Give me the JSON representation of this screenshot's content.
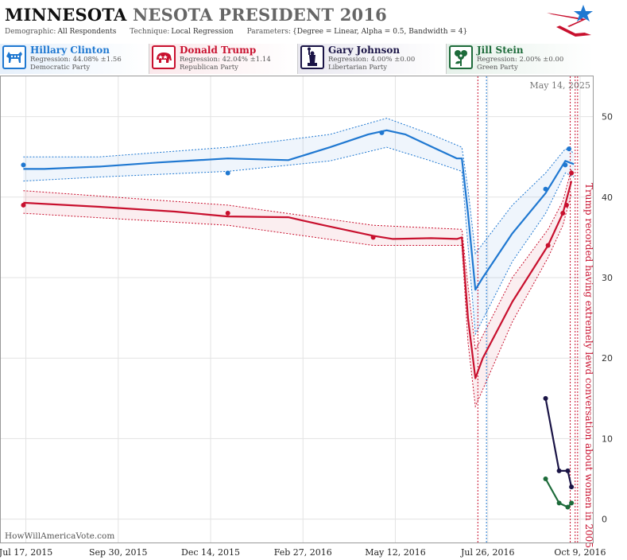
{
  "header": {
    "title_state": "MINNESOTA",
    "title_rest": "NESOTA PRESIDENT 2016",
    "demographic_label": "Demographic:",
    "demographic_value": "All Respondents",
    "technique_label": "Technique:",
    "technique_value": "Local Regression",
    "parameters_label": "Parameters:",
    "parameters_value": "{Degree = Linear, Alpha = 0.5, Bandwidth = 4}"
  },
  "candidates": [
    {
      "name": "Hillary Clinton",
      "regression": "Regression: 44.08% ±1.56",
      "party": "Democratic Party",
      "color": "#1f78d1",
      "icon": "donkey-icon"
    },
    {
      "name": "Donald Trump",
      "regression": "Regression: 42.04% ±1.14",
      "party": "Republican Party",
      "color": "#c8102e",
      "icon": "elephant-icon"
    },
    {
      "name": "Gary Johnson",
      "regression": "Regression: 4.00% ±0.00",
      "party": "Libertarian Party",
      "color": "#1a1446",
      "icon": "statue-of-liberty-icon"
    },
    {
      "name": "Jill Stein",
      "regression": "Regression: 2.00% ±0.00",
      "party": "Green Party",
      "color": "#1d6b3a",
      "icon": "rose-icon"
    }
  ],
  "watermark": "HowWillAmericaVote.com",
  "chart_data": {
    "type": "line",
    "date_label": "May 14, 2025",
    "xlim": [
      "2015-06-26",
      "2016-10-20"
    ],
    "ylim": [
      -3,
      55
    ],
    "yticks": [
      0,
      10,
      20,
      30,
      40,
      50
    ],
    "xtick_labels": [
      "Jul 17, 2015",
      "Sep 30, 2015",
      "Dec 14, 2015",
      "Feb 27, 2016",
      "May 12, 2016",
      "Jul 26, 2016",
      "Oct 9, 2016"
    ],
    "xtick_dates": [
      "2015-07-17",
      "2015-09-30",
      "2015-12-14",
      "2016-02-27",
      "2016-05-12",
      "2016-07-26",
      "2016-10-09"
    ],
    "grid": true,
    "series": [
      {
        "name": "Hillary Clinton",
        "color": "#1f78d1",
        "points": [
          [
            "2015-07-15",
            44
          ],
          [
            "2015-12-28",
            43
          ],
          [
            "2016-05-01",
            48
          ],
          [
            "2016-09-11",
            41
          ],
          [
            "2016-09-27",
            44
          ],
          [
            "2016-09-30",
            46
          ]
        ],
        "trend": [
          [
            "2015-07-15",
            43.5
          ],
          [
            "2015-08-01",
            43.5
          ],
          [
            "2015-09-15",
            43.8
          ],
          [
            "2015-11-01",
            44.3
          ],
          [
            "2015-12-28",
            44.8
          ],
          [
            "2016-02-15",
            44.6
          ],
          [
            "2016-03-20",
            46.2
          ],
          [
            "2016-04-20",
            47.8
          ],
          [
            "2016-05-05",
            48.3
          ],
          [
            "2016-05-20",
            47.8
          ],
          [
            "2016-06-10",
            46.3
          ],
          [
            "2016-07-01",
            44.8
          ],
          [
            "2016-07-05",
            44.8
          ],
          [
            "2016-07-10",
            38.0
          ],
          [
            "2016-07-16",
            28.5
          ],
          [
            "2016-07-22",
            30.0
          ],
          [
            "2016-08-15",
            35.5
          ],
          [
            "2016-09-11",
            40.5
          ],
          [
            "2016-09-27",
            44.5
          ],
          [
            "2016-10-04",
            44.1
          ]
        ],
        "upper": [
          [
            "2015-07-15",
            45.0
          ],
          [
            "2015-09-15",
            45.0
          ],
          [
            "2015-12-28",
            46.2
          ],
          [
            "2016-03-20",
            47.8
          ],
          [
            "2016-05-05",
            49.8
          ],
          [
            "2016-06-10",
            47.8
          ],
          [
            "2016-07-05",
            46.2
          ],
          [
            "2016-07-10",
            41.0
          ],
          [
            "2016-07-16",
            33.0
          ],
          [
            "2016-08-15",
            39.0
          ],
          [
            "2016-09-11",
            43.0
          ],
          [
            "2016-09-27",
            46.0
          ],
          [
            "2016-10-04",
            45.5
          ]
        ],
        "lower": [
          [
            "2015-07-15",
            42.0
          ],
          [
            "2015-09-15",
            42.5
          ],
          [
            "2015-12-28",
            43.2
          ],
          [
            "2016-03-20",
            44.5
          ],
          [
            "2016-05-05",
            46.2
          ],
          [
            "2016-06-10",
            44.5
          ],
          [
            "2016-07-05",
            43.2
          ],
          [
            "2016-07-10",
            34.0
          ],
          [
            "2016-07-16",
            23.0
          ],
          [
            "2016-08-15",
            32.0
          ],
          [
            "2016-09-11",
            38.0
          ],
          [
            "2016-09-27",
            43.0
          ],
          [
            "2016-10-04",
            42.5
          ]
        ]
      },
      {
        "name": "Donald Trump",
        "color": "#c8102e",
        "points": [
          [
            "2015-07-15",
            39
          ],
          [
            "2015-12-28",
            38
          ],
          [
            "2016-04-24",
            35
          ],
          [
            "2016-09-13",
            34
          ],
          [
            "2016-09-25",
            38
          ],
          [
            "2016-09-28",
            39
          ],
          [
            "2016-10-02",
            43
          ]
        ],
        "trend": [
          [
            "2015-07-15",
            39.3
          ],
          [
            "2015-09-15",
            38.8
          ],
          [
            "2015-11-15",
            38.2
          ],
          [
            "2015-12-28",
            37.6
          ],
          [
            "2016-02-15",
            37.5
          ],
          [
            "2016-03-15",
            36.5
          ],
          [
            "2016-04-24",
            35.2
          ],
          [
            "2016-05-10",
            34.8
          ],
          [
            "2016-06-10",
            34.9
          ],
          [
            "2016-07-01",
            34.8
          ],
          [
            "2016-07-05",
            35.0
          ],
          [
            "2016-07-10",
            25.0
          ],
          [
            "2016-07-16",
            17.5
          ],
          [
            "2016-07-22",
            20.0
          ],
          [
            "2016-08-15",
            27.0
          ],
          [
            "2016-09-13",
            34.0
          ],
          [
            "2016-09-25",
            38.0
          ],
          [
            "2016-10-02",
            42.0
          ]
        ],
        "upper": [
          [
            "2015-07-15",
            40.8
          ],
          [
            "2015-12-28",
            39.0
          ],
          [
            "2016-04-24",
            36.5
          ],
          [
            "2016-07-05",
            36.0
          ],
          [
            "2016-07-10",
            29.0
          ],
          [
            "2016-07-16",
            21.0
          ],
          [
            "2016-08-15",
            30.0
          ],
          [
            "2016-09-13",
            36.0
          ],
          [
            "2016-09-25",
            39.5
          ],
          [
            "2016-10-02",
            43.5
          ]
        ],
        "lower": [
          [
            "2015-07-15",
            38.0
          ],
          [
            "2015-12-28",
            36.5
          ],
          [
            "2016-04-24",
            34.0
          ],
          [
            "2016-07-05",
            34.0
          ],
          [
            "2016-07-10",
            22.0
          ],
          [
            "2016-07-16",
            14.0
          ],
          [
            "2016-08-15",
            24.5
          ],
          [
            "2016-09-13",
            32.5
          ],
          [
            "2016-09-25",
            36.5
          ],
          [
            "2016-10-02",
            40.5
          ]
        ]
      },
      {
        "name": "Gary Johnson",
        "color": "#1a1446",
        "points": [
          [
            "2016-09-11",
            15
          ],
          [
            "2016-09-22",
            6
          ],
          [
            "2016-09-29",
            6
          ],
          [
            "2016-10-02",
            4
          ]
        ],
        "trend": [
          [
            "2016-09-11",
            15
          ],
          [
            "2016-09-22",
            6
          ],
          [
            "2016-09-29",
            6
          ],
          [
            "2016-10-02",
            4
          ]
        ]
      },
      {
        "name": "Jill Stein",
        "color": "#1d6b3a",
        "points": [
          [
            "2016-09-11",
            5
          ],
          [
            "2016-09-22",
            2
          ],
          [
            "2016-09-29",
            1.5
          ],
          [
            "2016-10-02",
            2
          ]
        ],
        "trend": [
          [
            "2016-09-11",
            5
          ],
          [
            "2016-09-22",
            2
          ],
          [
            "2016-09-29",
            1.5
          ],
          [
            "2016-10-02",
            2
          ]
        ]
      }
    ],
    "events": [
      {
        "date": "2016-07-18",
        "color": "#c8102e"
      },
      {
        "date": "2016-07-25",
        "color": "#1f78d1"
      },
      {
        "date": "2016-10-01",
        "color": "#c8102e"
      },
      {
        "date": "2016-10-05",
        "color": "#c8102e"
      },
      {
        "date": "2016-10-07",
        "color": "#c8102e",
        "label": "Trump recorded having extremely lewd conversation about women in 2005"
      }
    ]
  }
}
